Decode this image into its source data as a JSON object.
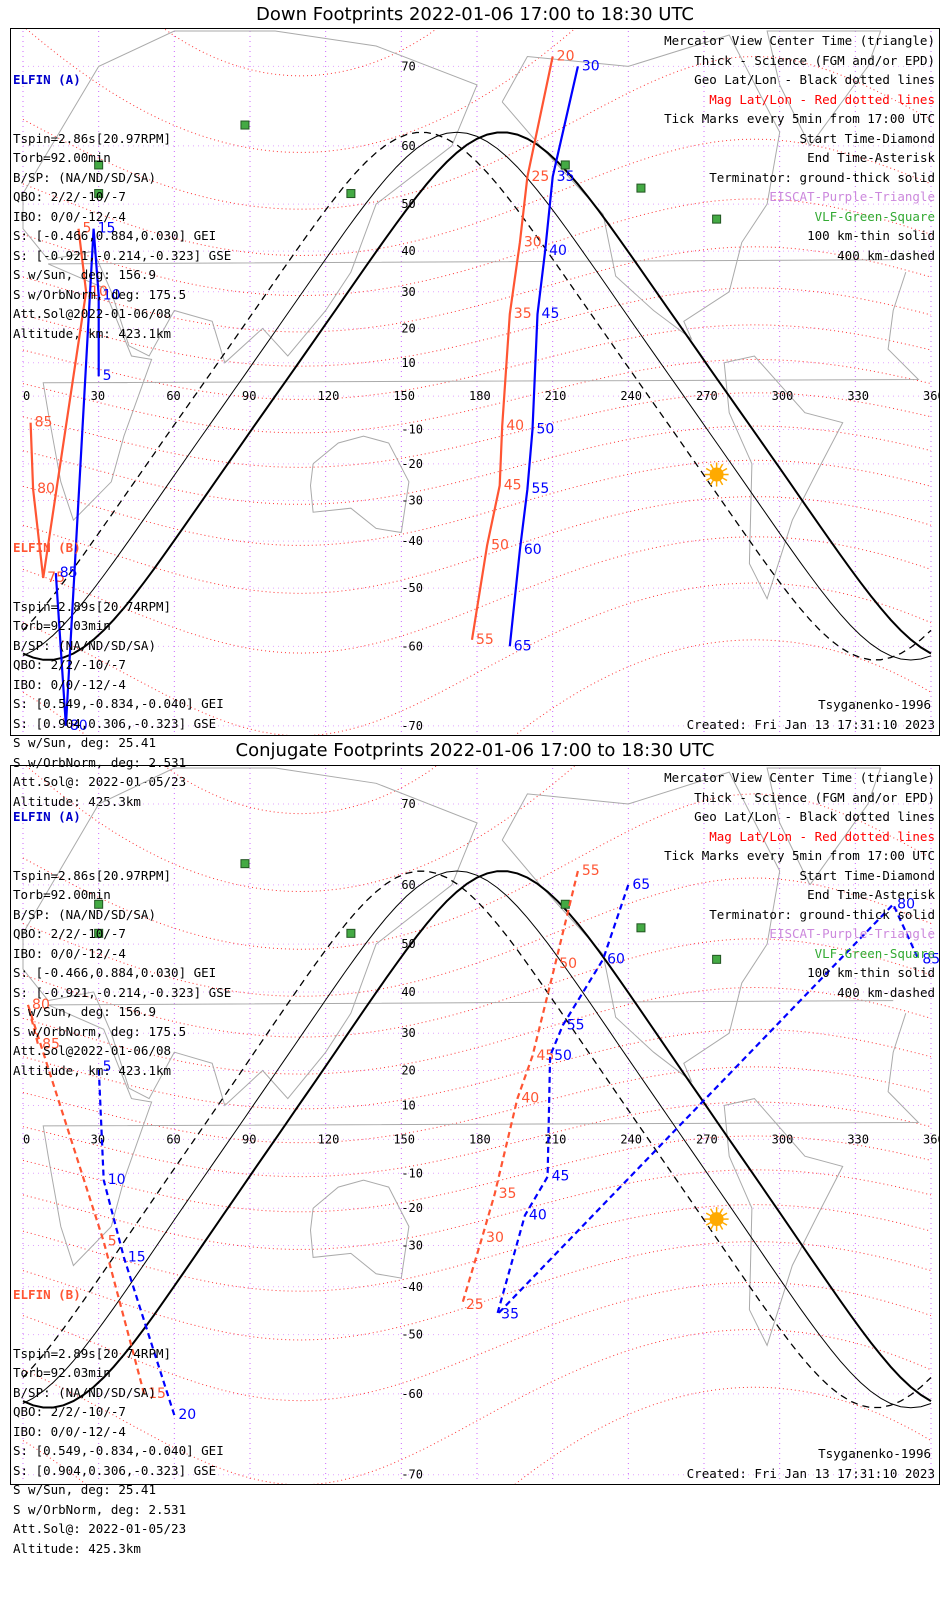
{
  "panels": [
    {
      "title": "Down Footprints 2022-01-06 17:00 to 18:30 UTC",
      "elfin_a": {
        "header": "ELFIN (A)",
        "lines": [
          "Tspin=2.86s[20.97RPM]",
          "Torb=92.00min",
          "B/SP: (NA/ND/SD/SA)",
          "QBO: 2/2/-10/-7",
          "IBO: 0/0/-12/-4",
          "S: [-0.466,0.884,0.030] GEI",
          "S: [-0.921,-0.214,-0.323] GSE",
          "S w/Sun, deg: 156.9",
          "S w/OrbNorm, deg: 175.5",
          "Att.Sol@2022-01-06/08",
          "Altitude, km: 423.1km"
        ]
      },
      "elfin_b": {
        "header": "ELFIN (B)",
        "lines": [
          "Tspin=2.89s[20.74RPM]",
          "Torb=92.03min",
          "B/SP: (NA/ND/SD/SA)",
          "QBO: 2/2/-10/-7",
          "IBO: 0/0/-12/-4",
          "S: [0.549,-0.834,-0.040] GEI",
          "S: [0.904,0.306,-0.323] GSE",
          "S w/Sun, deg: 25.41",
          "S w/OrbNorm, deg: 2.531",
          "Att.Sol@: 2022-01-05/23",
          "Altitude: 425.3km"
        ]
      },
      "model": "Tsyganenko-1996",
      "created": "Created: Fri Jan 13 17:31:10 2023"
    },
    {
      "title": "Conjugate Footprints 2022-01-06 17:00 to 18:30 UTC",
      "elfin_a": {
        "header": "ELFIN (A)",
        "lines": [
          "Tspin=2.86s[20.97RPM]",
          "Torb=92.00min",
          "B/SP: (NA/ND/SD/SA)",
          "QBO: 2/2/-10/-7",
          "IBO: 0/0/-12/-4",
          "S: [-0.466,0.884,0.030] GEI",
          "S: [-0.921,-0.214,-0.323] GSE",
          "S w/Sun, deg: 156.9",
          "S w/OrbNorm, deg: 175.5",
          "Att.Sol@2022-01-06/08",
          "Altitude, km: 423.1km"
        ]
      },
      "elfin_b": {
        "header": "ELFIN (B)",
        "lines": [
          "Tspin=2.89s[20.74RPM]",
          "Torb=92.03min",
          "B/SP: (NA/ND/SD/SA)",
          "QBO: 2/2/-10/-7",
          "IBO: 0/0/-12/-4",
          "S: [0.549,-0.834,-0.040] GEI",
          "S: [0.904,0.306,-0.323] GSE",
          "S w/Sun, deg: 25.41",
          "S w/OrbNorm, deg: 2.531",
          "Att.Sol@: 2022-01-05/23",
          "Altitude: 425.3km"
        ]
      },
      "model": "Tsyganenko-1996",
      "created": "Created: Fri Jan 13 17:31:10 2023"
    }
  ],
  "legend": [
    {
      "text": "Mercator View Center Time (triangle)",
      "color": "#000000"
    },
    {
      "text": "Thick - Science (FGM and/or EPD)",
      "color": "#000000"
    },
    {
      "text": "Geo Lat/Lon - Black dotted lines",
      "color": "#000000"
    },
    {
      "text": "Mag Lat/Lon - Red dotted lines",
      "color": "#ff0000"
    },
    {
      "text": "Tick Marks every 5min from 17:00 UTC",
      "color": "#000000"
    },
    {
      "text": "Start Time-Diamond",
      "color": "#000000"
    },
    {
      "text": "End Time-Asterisk",
      "color": "#000000"
    },
    {
      "text": "Terminator: ground-thick solid",
      "color": "#000000"
    },
    {
      "text": "EISCAT-Purple-Triangle",
      "color": "#cc88dd"
    },
    {
      "text": "VLF-Green-Square",
      "color": "#33aa33"
    },
    {
      "text": "100 km-thin solid",
      "color": "#000000"
    },
    {
      "text": "400 km-dashed",
      "color": "#000000"
    }
  ],
  "map": {
    "lon_ticks": [
      "0",
      "30",
      "60",
      "90",
      "120",
      "150",
      "180",
      "210",
      "240",
      "270",
      "300",
      "330",
      "360"
    ],
    "lat_ticks": [
      "70",
      "60",
      "50",
      "40",
      "30",
      "20",
      "10",
      "-10",
      "-20",
      "-30",
      "-40",
      "-50",
      "-60",
      "-70"
    ],
    "lon_range": [
      0,
      360
    ],
    "colors": {
      "elfin_a": "#0000ff",
      "elfin_b": "#ff5533",
      "mag_grid": "#ff3333",
      "geo_grid": "#cc66ff",
      "terminator": "#000000",
      "vlf": "#44aa44",
      "sun": "#ffaa00",
      "coast": "#aaaaaa"
    },
    "vlf_stations": [
      {
        "lon": 30,
        "lat": 57
      },
      {
        "lon": 30,
        "lat": 52
      },
      {
        "lon": 88,
        "lat": 63
      },
      {
        "lon": 130,
        "lat": 52
      },
      {
        "lon": 215,
        "lat": 57
      },
      {
        "lon": 245,
        "lat": 53
      },
      {
        "lon": 275,
        "lat": 47
      }
    ],
    "sun": {
      "lon": 275,
      "lat": -23
    }
  },
  "tracks": [
    {
      "a_labels": [
        [
          "30",
          220,
          70
        ],
        [
          "35",
          210,
          55
        ],
        [
          "40",
          207,
          40
        ],
        [
          "45",
          204,
          24
        ],
        [
          "50",
          202,
          -10
        ],
        [
          "55",
          200,
          -27
        ],
        [
          "60",
          197,
          -42
        ],
        [
          "65",
          193,
          -60
        ],
        [
          "5",
          30,
          6
        ],
        [
          "10",
          30,
          29
        ],
        [
          "15",
          28,
          45
        ],
        [
          "80",
          17,
          -70
        ],
        [
          "85",
          13,
          -47
        ]
      ],
      "b_labels": [
        [
          "20",
          210,
          71
        ],
        [
          "25",
          200,
          55
        ],
        [
          "30",
          197,
          42
        ],
        [
          "35",
          193,
          24
        ],
        [
          "40",
          190,
          -9
        ],
        [
          "45",
          189,
          -26
        ],
        [
          "50",
          184,
          -41
        ],
        [
          "55",
          178,
          -59
        ],
        [
          "5",
          22,
          45
        ],
        [
          "10",
          25,
          30
        ],
        [
          "75",
          8,
          -48
        ],
        [
          "80",
          4,
          -27
        ],
        [
          "85",
          3,
          -8
        ]
      ]
    },
    {
      "a_labels": [
        [
          "65",
          240,
          60
        ],
        [
          "60",
          230,
          47
        ],
        [
          "55",
          214,
          32
        ],
        [
          "50",
          209,
          24
        ],
        [
          "45",
          208,
          -11
        ],
        [
          "40",
          199,
          -22
        ],
        [
          "35",
          188,
          -46
        ],
        [
          "20",
          60,
          -63
        ],
        [
          "15",
          40,
          -33
        ],
        [
          "10",
          32,
          -12
        ],
        [
          "5",
          30,
          21
        ],
        [
          "80",
          345,
          57
        ],
        [
          "85",
          355,
          47
        ]
      ],
      "b_labels": [
        [
          "55",
          220,
          62
        ],
        [
          "50",
          211,
          46
        ],
        [
          "45",
          202,
          24
        ],
        [
          "40",
          196,
          12
        ],
        [
          "35",
          187,
          -16
        ],
        [
          "30",
          182,
          -28
        ],
        [
          "25",
          174,
          -44
        ],
        [
          "15",
          48,
          -60
        ],
        [
          "5",
          32,
          -29
        ],
        [
          "80",
          2,
          37
        ],
        [
          "85",
          6,
          27
        ]
      ]
    }
  ]
}
